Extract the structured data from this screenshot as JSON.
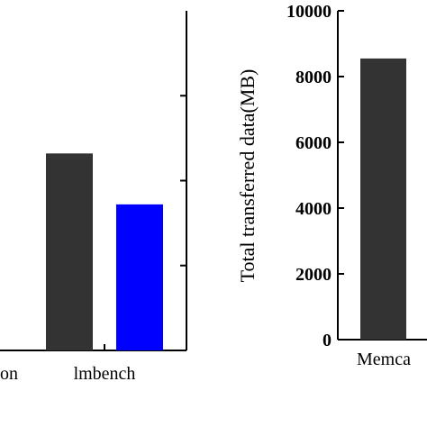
{
  "chart_data": [
    {
      "type": "bar",
      "title": "",
      "xlabel": "",
      "ylabel": "",
      "categories": [
        "on",
        "lmbench"
      ],
      "series": [
        {
          "color": "#333333",
          "values": [
            null,
            5.8
          ]
        },
        {
          "color": "#0000ff",
          "values": [
            null,
            4.3
          ]
        }
      ],
      "ylim": [
        0,
        10
      ],
      "yticks": [],
      "grid": false
    },
    {
      "type": "bar",
      "title": "",
      "xlabel": "",
      "ylabel": "Total transferred data(MB)",
      "categories": [
        "Memca"
      ],
      "series": [
        {
          "color": "#333333",
          "values": [
            8550
          ]
        }
      ],
      "ylim": [
        0,
        10000
      ],
      "yticks": [
        "0",
        "2000",
        "4000",
        "6000",
        "8000",
        "10000"
      ],
      "grid": false
    }
  ]
}
